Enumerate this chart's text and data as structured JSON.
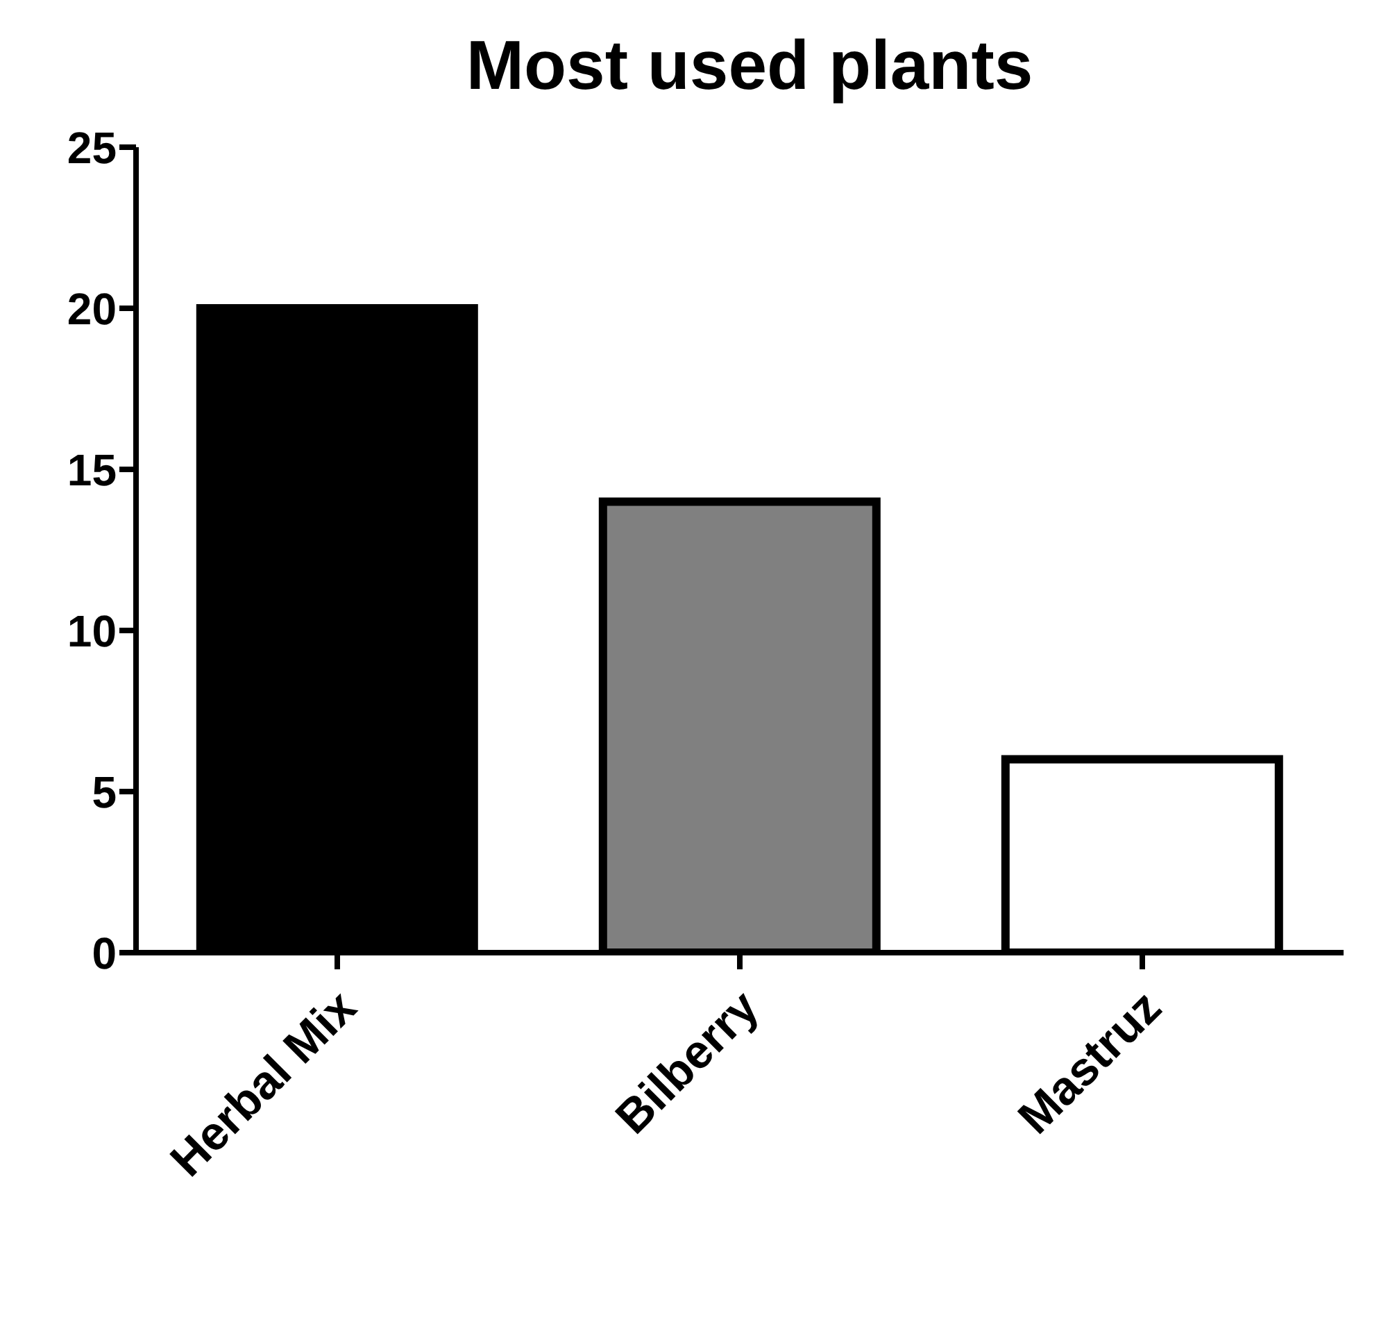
{
  "chart_data": {
    "type": "bar",
    "title": "Most used plants",
    "categories": [
      "Herbal Mix",
      "Bilberry",
      "Mastruz"
    ],
    "values": [
      20,
      14,
      6
    ],
    "colors": [
      "#000000",
      "#808080",
      "#ffffff"
    ],
    "ylim": [
      0,
      25
    ],
    "yticks": [
      0,
      5,
      10,
      15,
      20,
      25
    ]
  }
}
